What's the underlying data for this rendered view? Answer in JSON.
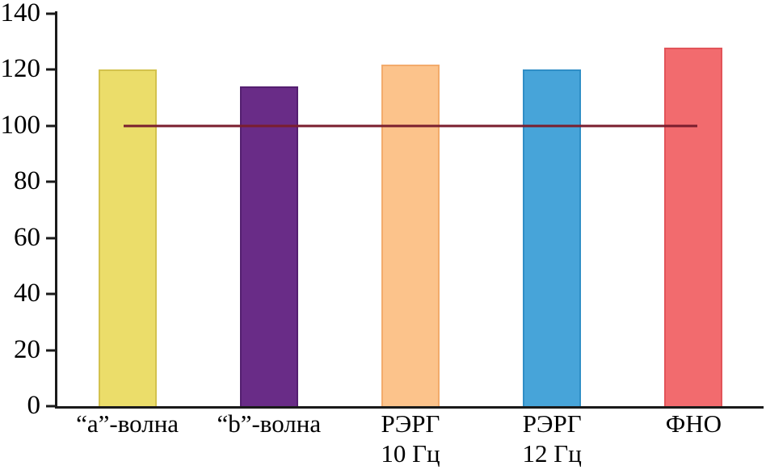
{
  "chart_data": {
    "type": "bar",
    "title": "",
    "xlabel": "",
    "ylabel": "",
    "categories": [
      "“a”-волна",
      "“b”-волна",
      "РЭРГ\n10 Гц",
      "РЭРГ\n12 Гц",
      "ФНО"
    ],
    "values": [
      120,
      114,
      122,
      120,
      128
    ],
    "bar_colors": [
      "#ebdd6a",
      "#692c87",
      "#fcc38b",
      "#47a4d9",
      "#f26b6e"
    ],
    "bar_border_colors": [
      "#d3c24d",
      "#541f70",
      "#f3ab6b",
      "#2f8ec6",
      "#e25459"
    ],
    "reference_line": {
      "value": 100,
      "color": "#7a1e2e"
    },
    "ylim": [
      0,
      140
    ],
    "yticks": [
      0,
      20,
      40,
      60,
      80,
      100,
      120,
      140
    ],
    "grid": false,
    "legend": null,
    "axis_color": "#1a1a1a"
  }
}
